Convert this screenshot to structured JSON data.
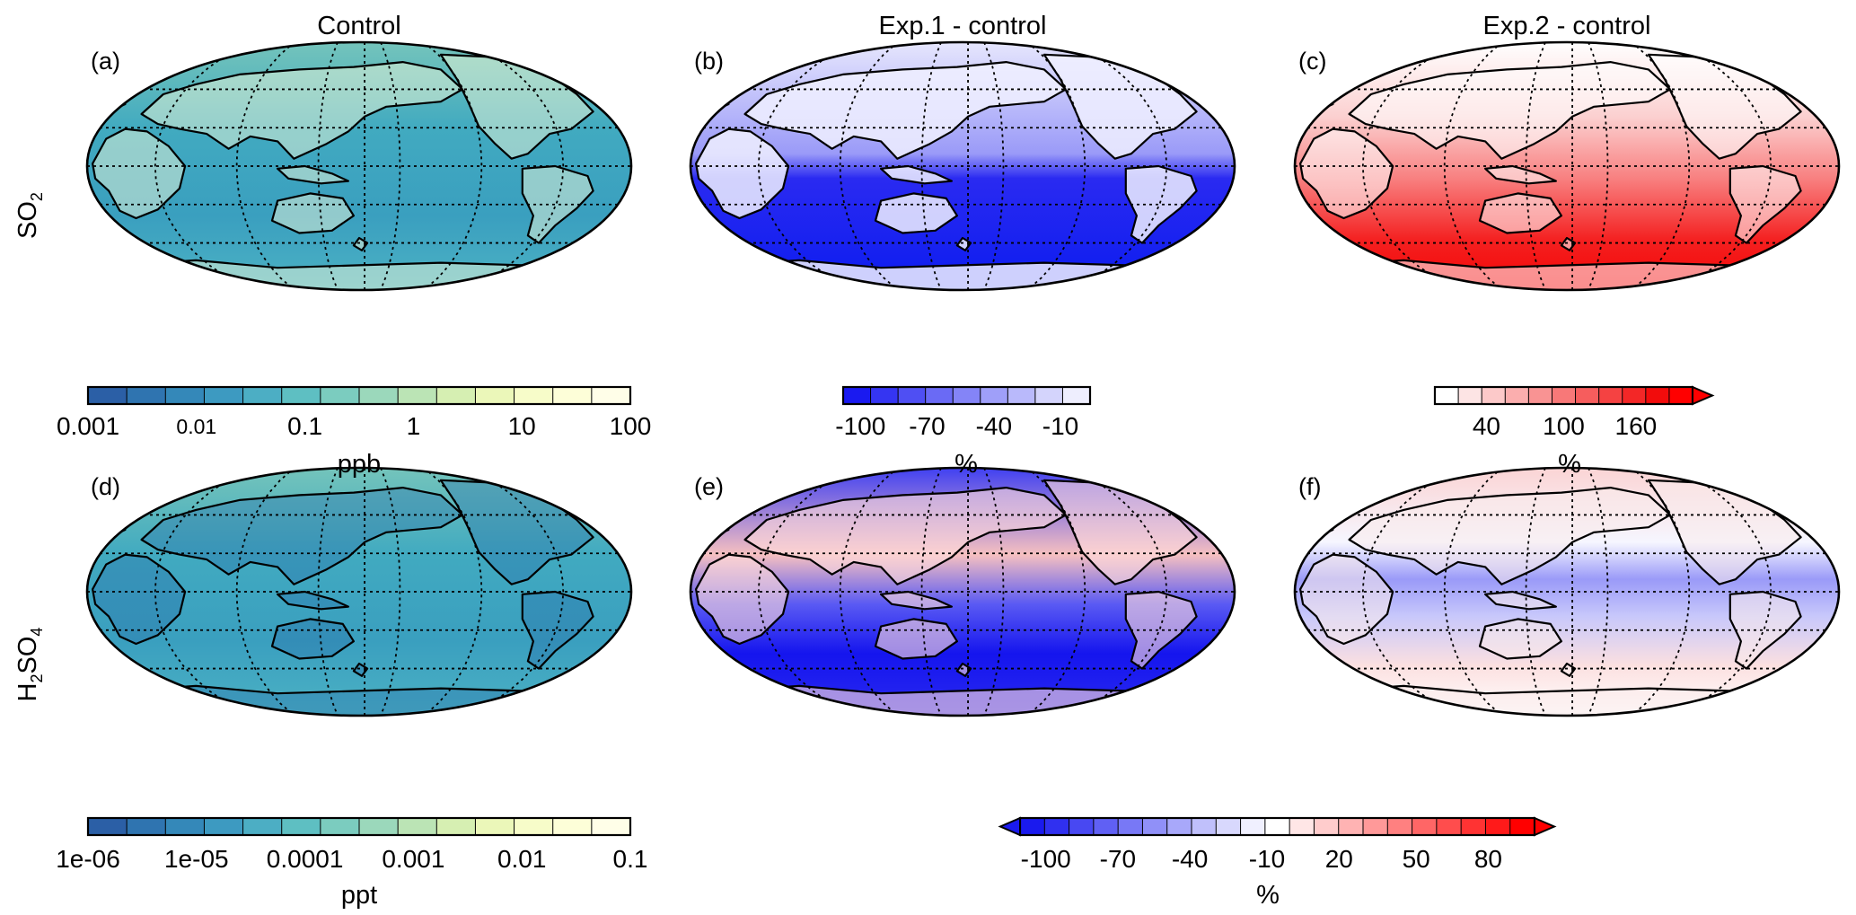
{
  "columns": [
    {
      "id": "control",
      "title": "Control"
    },
    {
      "id": "exp1",
      "title": "Exp.1 - control"
    },
    {
      "id": "exp2",
      "title": "Exp.2 - control"
    }
  ],
  "rows": [
    {
      "id": "so2",
      "label": "SO",
      "label_sub": "2"
    },
    {
      "id": "h2so4",
      "label": "H",
      "label_sub": "2",
      "label_rest": "SO",
      "label_sub2": "4"
    }
  ],
  "panels": [
    {
      "id": "a",
      "label": "(a)",
      "row": "so2",
      "col": "control",
      "palette": "ylgnbu",
      "field": "so2_control"
    },
    {
      "id": "b",
      "label": "(b)",
      "row": "so2",
      "col": "exp1",
      "palette": "blues",
      "field": "so2_exp1"
    },
    {
      "id": "c",
      "label": "(c)",
      "row": "so2",
      "col": "exp2",
      "palette": "reds",
      "field": "so2_exp2"
    },
    {
      "id": "d",
      "label": "(d)",
      "row": "h2so4",
      "col": "control",
      "palette": "ylgnbu",
      "field": "h2so4_control"
    },
    {
      "id": "e",
      "label": "(e)",
      "row": "h2so4",
      "col": "exp1",
      "palette": "bwr",
      "field": "h2so4_exp1"
    },
    {
      "id": "f",
      "label": "(f)",
      "row": "h2so4",
      "col": "exp2",
      "palette": "bwr",
      "field": "h2so4_exp2"
    }
  ],
  "colorbars": [
    {
      "id": "cb-a",
      "for": [
        "a"
      ],
      "unit": "ppb",
      "scale": "log",
      "ticks": [
        "0.001",
        "0.01",
        "0.1",
        "1",
        "10",
        "100"
      ],
      "small_ticks": [
        "0.01"
      ],
      "colors": [
        "#2b5fa6",
        "#2f74b0",
        "#3488b9",
        "#3d9ac1",
        "#4caec4",
        "#5ebfc2",
        "#7bccbf",
        "#9bd8bb",
        "#bbe4b5",
        "#d6efb2",
        "#ebf7b9",
        "#f7fcc9",
        "#fdfed8",
        "#fffee8"
      ]
    },
    {
      "id": "cb-b",
      "for": [
        "b"
      ],
      "unit": "%",
      "ticks": [
        "-100",
        "-70",
        "-40",
        "-10"
      ],
      "colors": [
        "#1a1af0",
        "#3535f2",
        "#4f4ff3",
        "#6a6af5",
        "#8484f7",
        "#9f9ff9",
        "#b9b9fb",
        "#d4d4fc",
        "#eeeefe"
      ]
    },
    {
      "id": "cb-c",
      "for": [
        "c"
      ],
      "unit": "%",
      "ticks": [
        "40",
        "100",
        "160"
      ],
      "extend": "max",
      "colors": [
        "#ffffff",
        "#fde4e4",
        "#fcc9c9",
        "#fbaeae",
        "#f99393",
        "#f87878",
        "#f65d5d",
        "#f54242",
        "#f32727",
        "#f20c0c",
        "#ff0000"
      ]
    },
    {
      "id": "cb-d",
      "for": [
        "d"
      ],
      "unit": "ppt",
      "scale": "log",
      "ticks": [
        "1e-06",
        "1e-05",
        "0.0001",
        "0.001",
        "0.01",
        "0.1"
      ],
      "colors": [
        "#2b5fa6",
        "#2f74b0",
        "#3488b9",
        "#3d9ac1",
        "#4caec4",
        "#5ebfc2",
        "#7bccbf",
        "#9bd8bb",
        "#bbe4b5",
        "#d6efb2",
        "#ebf7b9",
        "#f7fcc9",
        "#fdfed8",
        "#fffee8"
      ]
    },
    {
      "id": "cb-ef",
      "for": [
        "e",
        "f"
      ],
      "unit": "%",
      "ticks": [
        "-100",
        "-70",
        "-40",
        "-10",
        "20",
        "50",
        "80"
      ],
      "extend": "both",
      "colors": [
        "#1a1aee",
        "#3030f0",
        "#4848f2",
        "#6060f4",
        "#7878f6",
        "#9090f8",
        "#a8a8fa",
        "#c0c0fb",
        "#d8d8fd",
        "#f0f0ff",
        "#ffffff",
        "#ffe6e6",
        "#ffcccc",
        "#ffb3b3",
        "#ff9999",
        "#ff8080",
        "#ff6666",
        "#ff4d4d",
        "#ff3333",
        "#ff1a1a",
        "#ff0000"
      ]
    }
  ],
  "colors": {
    "ylgnbu_mid": "#3fa8bf",
    "blue_deep": "#0a1ef0",
    "blue_light": "#e8e8fd",
    "red_strong": "#f50a0a",
    "red_light": "#fde0e0",
    "land_outline": "#000000",
    "grid": "#000000"
  }
}
